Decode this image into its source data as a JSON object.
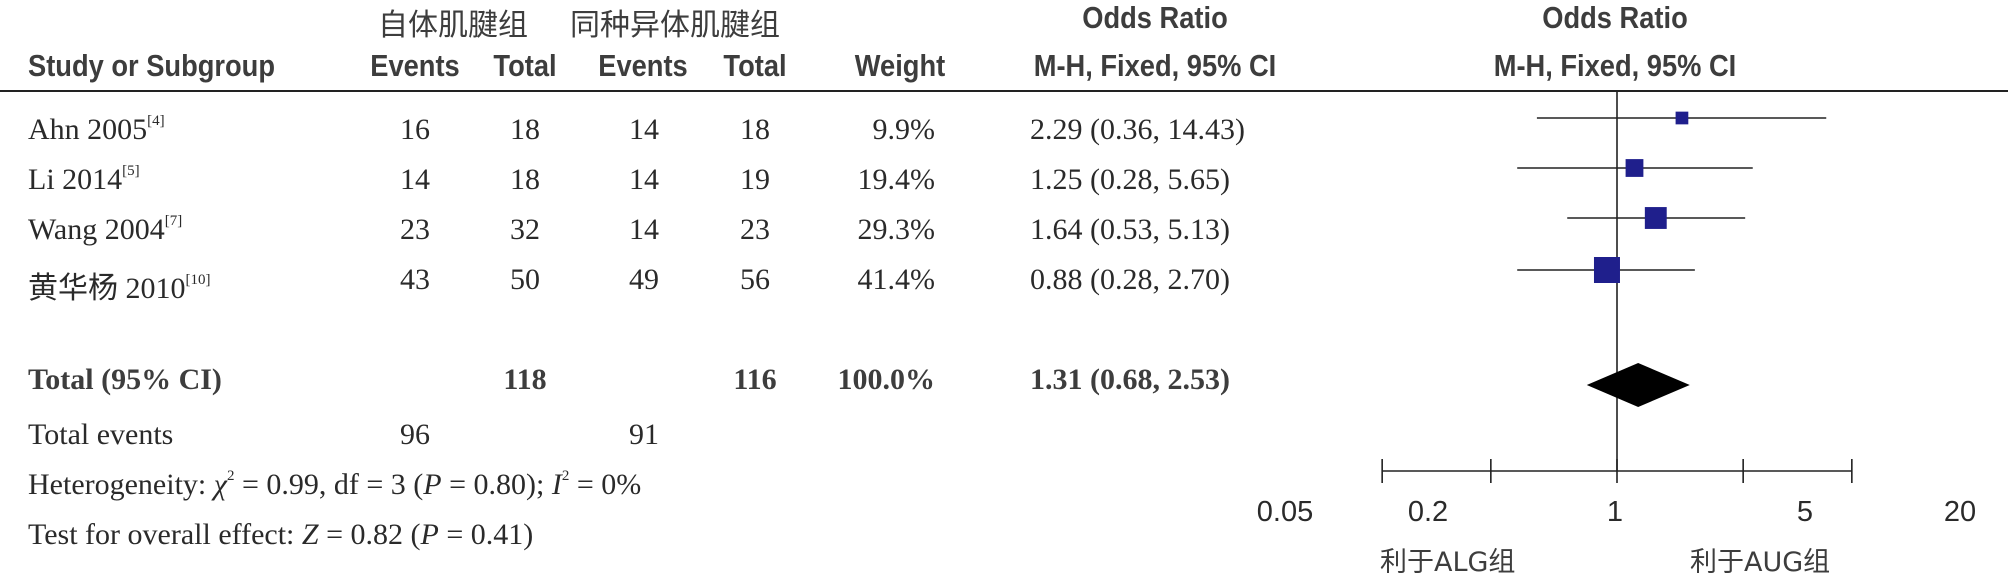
{
  "header": {
    "group1": "自体肌腱组",
    "group2": "同种异体肌腱组",
    "or_title": "Odds Ratio",
    "plot_title": "Odds Ratio",
    "col_study": "Study or Subgroup",
    "col_events1": "Events",
    "col_total1": "Total",
    "col_events2": "Events",
    "col_total2": "Total",
    "col_weight": "Weight",
    "col_method": "M-H, Fixed, 95% CI",
    "plot_method": "M-H, Fixed, 95% CI"
  },
  "studies": [
    {
      "name": "Ahn 2005",
      "ref": "[4]",
      "events1": "16",
      "total1": "18",
      "events2": "14",
      "total2": "18",
      "weight": "9.9%",
      "or_text": "2.29 (0.36, 14.43)"
    },
    {
      "name": "Li 2014",
      "ref": "[5]",
      "events1": "14",
      "total1": "18",
      "events2": "14",
      "total2": "19",
      "weight": "19.4%",
      "or_text": "1.25 (0.28, 5.65)"
    },
    {
      "name": "Wang 2004",
      "ref": "[7]",
      "events1": "23",
      "total1": "32",
      "events2": "14",
      "total2": "23",
      "weight": "29.3%",
      "or_text": "1.64 (0.53, 5.13)"
    },
    {
      "name": "黄华杨 2010",
      "ref": "[10]",
      "events1": "43",
      "total1": "50",
      "events2": "49",
      "total2": "56",
      "weight": "41.4%",
      "or_text": "0.88 (0.28, 2.70)"
    }
  ],
  "total": {
    "label": "Total (95% CI)",
    "total1": "118",
    "total2": "116",
    "weight": "100.0%",
    "or_text": "1.31 (0.68, 2.53)"
  },
  "total_events": {
    "label": "Total events",
    "events1": "96",
    "events2": "91"
  },
  "heterogeneity": {
    "label": "Heterogeneity: ",
    "chi_sym": "χ",
    "chi_sup": "2",
    "chi_rest": " = 0.99, df = 3 (",
    "p_sym": "P",
    "p_rest": " = 0.80); ",
    "i_sym": "I",
    "i_sup": "2",
    "i_rest": " = 0%"
  },
  "overall": {
    "label": "Test for overall effect: ",
    "z_sym": "Z",
    "z_rest": " = 0.82 (",
    "p_sym": "P",
    "p_rest": " = 0.41)"
  },
  "axis": {
    "ticks": [
      "0.05",
      "0.2",
      "1",
      "5",
      "20"
    ],
    "favours_left": "利于ALG组",
    "favours_right": "利于AUG组"
  },
  "colors": {
    "marker": "#1f1f8c",
    "diamond": "#000000",
    "line": "#222222"
  },
  "chart_data": {
    "type": "forest",
    "scale": "log",
    "xlim": [
      0.05,
      20
    ],
    "x_ticks": [
      0.05,
      0.2,
      1,
      5,
      20
    ],
    "null_line": 1,
    "studies": [
      {
        "name": "Ahn 2005",
        "or": 2.29,
        "lo": 0.36,
        "hi": 14.43,
        "weight": 9.9
      },
      {
        "name": "Li 2014",
        "or": 1.25,
        "lo": 0.28,
        "hi": 5.65,
        "weight": 19.4
      },
      {
        "name": "Wang 2004",
        "or": 1.64,
        "lo": 0.53,
        "hi": 5.13,
        "weight": 29.3
      },
      {
        "name": "黄华杨 2010",
        "or": 0.88,
        "lo": 0.28,
        "hi": 2.7,
        "weight": 41.4
      }
    ],
    "pooled": {
      "or": 1.31,
      "lo": 0.68,
      "hi": 2.53,
      "weight": 100.0
    }
  }
}
